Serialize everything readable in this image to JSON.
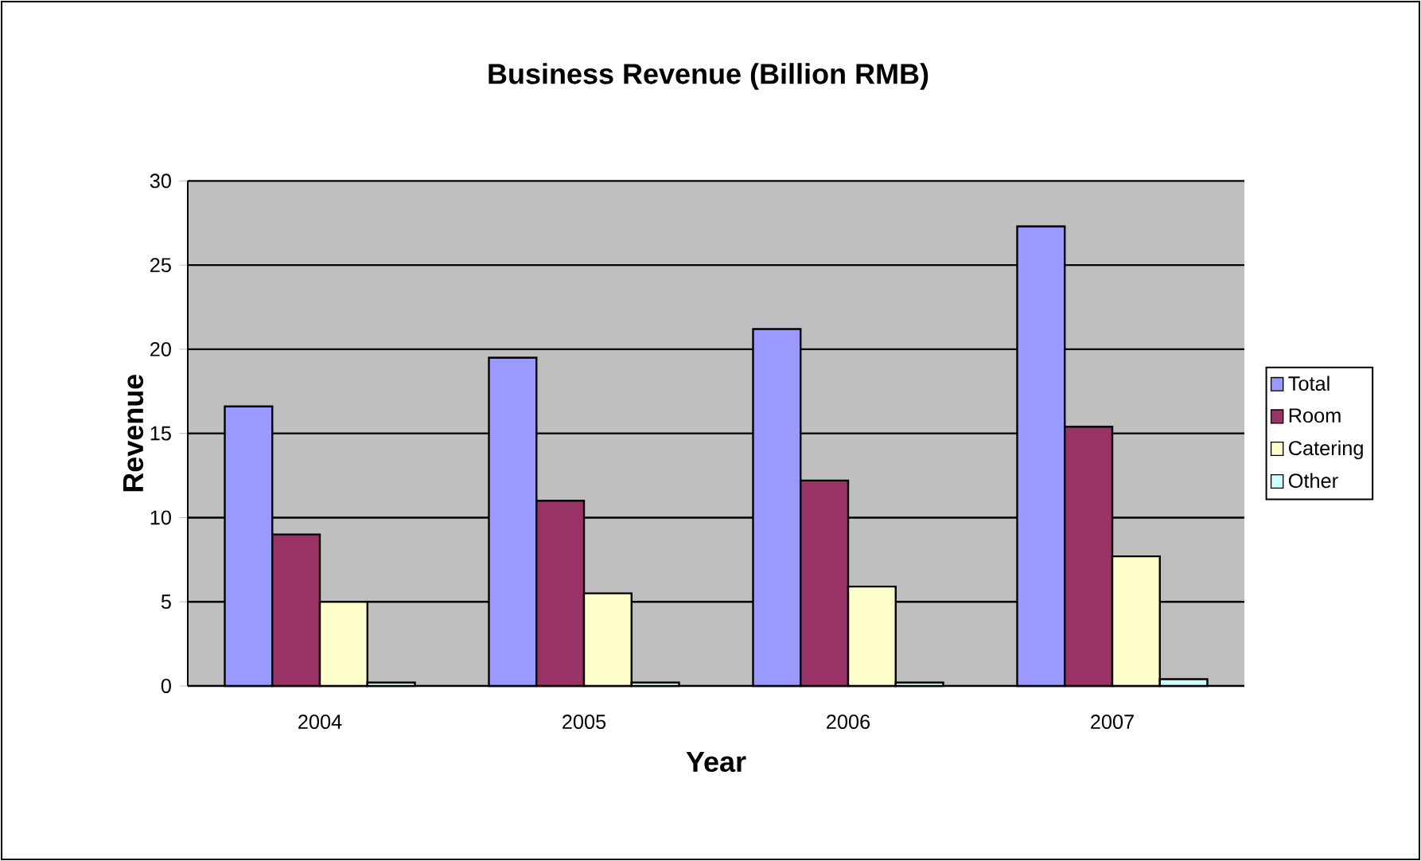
{
  "chart_data": {
    "type": "bar",
    "title": "Business Revenue (Billion RMB)",
    "xlabel": "Year",
    "ylabel": "Revenue",
    "categories": [
      "2004",
      "2005",
      "2006",
      "2007"
    ],
    "series": [
      {
        "name": "Total",
        "color": "#9999ff",
        "values": [
          16.6,
          19.5,
          21.2,
          27.3
        ]
      },
      {
        "name": "Room",
        "color": "#993366",
        "values": [
          9.0,
          11.0,
          12.2,
          15.4
        ]
      },
      {
        "name": "Catering",
        "color": "#ffffcc",
        "values": [
          5.0,
          5.5,
          5.9,
          7.7
        ]
      },
      {
        "name": "Other",
        "color": "#ccffff",
        "values": [
          0.2,
          0.2,
          0.2,
          0.4
        ]
      }
    ],
    "ylim": [
      0,
      30
    ],
    "yticks": [
      0,
      5,
      10,
      15,
      20,
      25,
      30
    ],
    "grid": "y",
    "legend": "right"
  }
}
